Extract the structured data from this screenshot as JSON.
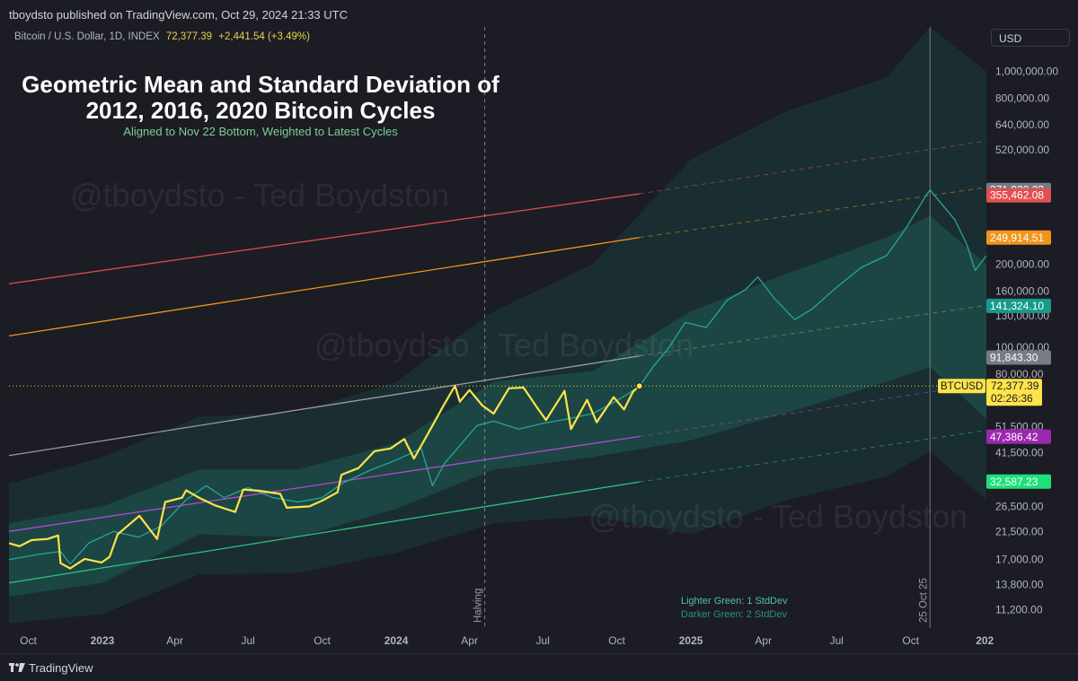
{
  "header": {
    "published": "tboydsto published on TradingView.com, Oct 29, 2024 21:33 UTC"
  },
  "symbol": {
    "name": "Bitcoin / U.S. Dollar, 1D, INDEX",
    "price": "72,377.39",
    "change": "+2,441.54 (+3.49%)"
  },
  "currency_button": "USD",
  "footer": {
    "brand": "TradingView"
  },
  "colors": {
    "background": "#1b1c24",
    "price_line": "#ffe34a",
    "model_line": "#26a69a",
    "band1": "#1d4a47",
    "band2": "#1a2f33",
    "red": "#e0504f",
    "orange": "#f0951c",
    "gray": "#9a9ca3",
    "purple": "#b04ad0",
    "green": "#2ec27e"
  },
  "chart_data": {
    "type": "line",
    "title": "Geometric Mean and Standard Deviation of 2012, 2016, 2020 Bitcoin Cycles",
    "subtitle": "Aligned to Nov 22 Bottom, Weighted to Latest Cycles",
    "y_scale": "log",
    "ylim": [
      9600,
      1450000
    ],
    "xlim": [
      "2022-09-07",
      "2026-01-03"
    ],
    "x_ticks": [
      {
        "date": "2022-10-01",
        "label": "Oct"
      },
      {
        "date": "2023-01-01",
        "label": "2023"
      },
      {
        "date": "2023-04-01",
        "label": "Apr"
      },
      {
        "date": "2023-07-01",
        "label": "Jul"
      },
      {
        "date": "2023-10-01",
        "label": "Oct"
      },
      {
        "date": "2024-01-01",
        "label": "2024"
      },
      {
        "date": "2024-04-01",
        "label": "Apr"
      },
      {
        "date": "2024-07-01",
        "label": "Jul"
      },
      {
        "date": "2024-10-01",
        "label": "Oct"
      },
      {
        "date": "2025-01-01",
        "label": "2025"
      },
      {
        "date": "2025-04-01",
        "label": "Apr"
      },
      {
        "date": "2025-07-01",
        "label": "Jul"
      },
      {
        "date": "2025-10-01",
        "label": "Oct"
      },
      {
        "date": "2026-01-01",
        "label": "202"
      }
    ],
    "y_ticks": [
      {
        "value": 1000000,
        "label": "1,000,000.00"
      },
      {
        "value": 800000,
        "label": "800,000.00"
      },
      {
        "value": 640000,
        "label": "640,000.00"
      },
      {
        "value": 520000,
        "label": "520,000.00"
      },
      {
        "value": 200000,
        "label": "200,000.00"
      },
      {
        "value": 160000,
        "label": "160,000.00"
      },
      {
        "value": 130000,
        "label": "130,000.00"
      },
      {
        "value": 100000,
        "label": "100,000.00"
      },
      {
        "value": 80000,
        "label": "80,000.00"
      },
      {
        "value": 51500,
        "label": "51,500.00"
      },
      {
        "value": 41500,
        "label": "41,500.00"
      },
      {
        "value": 26500,
        "label": "26,500.00"
      },
      {
        "value": 21500,
        "label": "21,500.00"
      },
      {
        "value": 17000,
        "label": "17,000.00"
      },
      {
        "value": 13800,
        "label": "13,800.00"
      },
      {
        "value": 11200,
        "label": "11,200.00"
      }
    ],
    "price_labels": [
      {
        "value": 371920.23,
        "label": "371,920.23",
        "color": "#787b86"
      },
      {
        "value": 355462.08,
        "label": "355,462.08",
        "color": "#e0504f"
      },
      {
        "value": 249914.51,
        "label": "249,914.51",
        "color": "#f0951c"
      },
      {
        "value": 141324.1,
        "label": "141,324.10",
        "color": "#169a8c"
      },
      {
        "value": 91843.3,
        "label": "91,843.30",
        "color": "#787b86"
      },
      {
        "value": 47386.42,
        "label": "47,386.42",
        "color": "#9c27b0"
      },
      {
        "value": 32587.23,
        "label": "32,587.23",
        "color": "#1ee07a"
      }
    ],
    "btc_label": {
      "symbol": "BTCUSD",
      "price": "72,377.39",
      "countdown": "02:26:36",
      "value": 72377.39
    },
    "channel_lines": [
      {
        "color": "#e0504f",
        "start": [
          "2022-09-07",
          170000
        ],
        "end_solid": [
          "2024-10-29",
          360000
        ],
        "end": [
          "2026-01-03",
          560000
        ]
      },
      {
        "color": "#f0951c",
        "start": [
          "2022-09-07",
          110000
        ],
        "end_solid": [
          "2024-10-29",
          250000
        ],
        "end": [
          "2026-01-03",
          380000
        ]
      },
      {
        "color": "#9a9ca3",
        "start": [
          "2022-09-07",
          40500
        ],
        "end_solid": [
          "2024-10-29",
          93000
        ],
        "end": [
          "2026-01-03",
          142000
        ]
      },
      {
        "color": "#b04ad0",
        "start": [
          "2022-09-07",
          21500
        ],
        "end_solid": [
          "2024-10-29",
          47500
        ],
        "end": [
          "2026-01-03",
          74000
        ]
      },
      {
        "color": "#2ec27e",
        "start": [
          "2022-09-07",
          14000
        ],
        "end_solid": [
          "2024-10-29",
          32500
        ],
        "end": [
          "2026-01-03",
          50000
        ]
      }
    ],
    "vertical_markers": [
      {
        "date": "2024-04-20",
        "label": "Halving",
        "style": "dashed"
      },
      {
        "date": "2025-10-25",
        "label": "25 Oct 25",
        "style": "solid"
      }
    ],
    "series": [
      {
        "name": "BTCUSD",
        "color": "#ffe34a",
        "points": [
          [
            "2022-09-07",
            19500
          ],
          [
            "2022-09-20",
            19000
          ],
          [
            "2022-10-05",
            20000
          ],
          [
            "2022-10-25",
            20200
          ],
          [
            "2022-11-07",
            20800
          ],
          [
            "2022-11-10",
            16500
          ],
          [
            "2022-11-22",
            15800
          ],
          [
            "2022-12-10",
            17100
          ],
          [
            "2022-12-31",
            16600
          ],
          [
            "2023-01-10",
            17400
          ],
          [
            "2023-01-20",
            21000
          ],
          [
            "2023-02-05",
            23000
          ],
          [
            "2023-02-16",
            24500
          ],
          [
            "2023-03-10",
            20200
          ],
          [
            "2023-03-20",
            27500
          ],
          [
            "2023-04-10",
            28500
          ],
          [
            "2023-04-15",
            30300
          ],
          [
            "2023-05-01",
            28500
          ],
          [
            "2023-05-20",
            26800
          ],
          [
            "2023-06-15",
            25300
          ],
          [
            "2023-06-25",
            30500
          ],
          [
            "2023-07-15",
            30200
          ],
          [
            "2023-08-10",
            29400
          ],
          [
            "2023-08-18",
            26200
          ],
          [
            "2023-09-15",
            26500
          ],
          [
            "2023-10-01",
            27800
          ],
          [
            "2023-10-20",
            29800
          ],
          [
            "2023-10-25",
            34500
          ],
          [
            "2023-11-15",
            36500
          ],
          [
            "2023-12-05",
            42000
          ],
          [
            "2023-12-25",
            43000
          ],
          [
            "2024-01-11",
            46500
          ],
          [
            "2024-01-23",
            39500
          ],
          [
            "2024-02-15",
            52000
          ],
          [
            "2024-02-28",
            61000
          ],
          [
            "2024-03-14",
            72500
          ],
          [
            "2024-03-20",
            63500
          ],
          [
            "2024-04-01",
            70000
          ],
          [
            "2024-04-17",
            61500
          ],
          [
            "2024-05-01",
            57500
          ],
          [
            "2024-05-20",
            71000
          ],
          [
            "2024-06-07",
            71500
          ],
          [
            "2024-06-24",
            60500
          ],
          [
            "2024-07-05",
            54500
          ],
          [
            "2024-07-28",
            69500
          ],
          [
            "2024-08-05",
            50500
          ],
          [
            "2024-08-25",
            64500
          ],
          [
            "2024-09-06",
            53500
          ],
          [
            "2024-09-27",
            66000
          ],
          [
            "2024-10-10",
            59500
          ],
          [
            "2024-10-21",
            69000
          ],
          [
            "2024-10-29",
            72377
          ]
        ]
      },
      {
        "name": "Model",
        "color": "#26a69a",
        "points": [
          [
            "2022-09-07",
            17000
          ],
          [
            "2022-10-15",
            17800
          ],
          [
            "2022-11-10",
            18200
          ],
          [
            "2022-11-22",
            16400
          ],
          [
            "2022-12-15",
            19500
          ],
          [
            "2023-01-15",
            21500
          ],
          [
            "2023-02-15",
            20500
          ],
          [
            "2023-03-15",
            22500
          ],
          [
            "2023-04-15",
            28000
          ],
          [
            "2023-05-10",
            31500
          ],
          [
            "2023-06-01",
            28500
          ],
          [
            "2023-07-01",
            31000
          ],
          [
            "2023-08-01",
            28500
          ],
          [
            "2023-09-01",
            27500
          ],
          [
            "2023-10-01",
            28500
          ],
          [
            "2023-10-25",
            32000
          ],
          [
            "2023-12-01",
            36000
          ],
          [
            "2024-01-01",
            39000
          ],
          [
            "2024-02-01",
            43000
          ],
          [
            "2024-02-15",
            31500
          ],
          [
            "2024-03-01",
            38000
          ],
          [
            "2024-03-20",
            44000
          ],
          [
            "2024-04-10",
            52000
          ],
          [
            "2024-05-01",
            54000
          ],
          [
            "2024-06-01",
            50500
          ],
          [
            "2024-07-01",
            53000
          ],
          [
            "2024-08-01",
            55000
          ],
          [
            "2024-09-01",
            57500
          ],
          [
            "2024-10-01",
            64000
          ],
          [
            "2024-10-29",
            72000
          ],
          [
            "2024-11-15",
            85000
          ],
          [
            "2024-12-05",
            100000
          ],
          [
            "2024-12-25",
            123000
          ],
          [
            "2025-01-20",
            118000
          ],
          [
            "2025-02-15",
            148000
          ],
          [
            "2025-03-10",
            162000
          ],
          [
            "2025-03-25",
            180000
          ],
          [
            "2025-04-15",
            150000
          ],
          [
            "2025-05-10",
            126000
          ],
          [
            "2025-06-01",
            138000
          ],
          [
            "2025-07-01",
            165000
          ],
          [
            "2025-08-01",
            195000
          ],
          [
            "2025-09-01",
            215000
          ],
          [
            "2025-09-25",
            270000
          ],
          [
            "2025-10-20",
            355000
          ],
          [
            "2025-10-25",
            372000
          ],
          [
            "2025-11-05",
            340000
          ],
          [
            "2025-11-25",
            290000
          ],
          [
            "2025-12-10",
            235000
          ],
          [
            "2025-12-20",
            190000
          ],
          [
            "2026-01-03",
            215000
          ]
        ]
      }
    ],
    "bands": {
      "dates": [
        "2022-09-07",
        "2023-01-01",
        "2023-05-01",
        "2023-09-01",
        "2024-01-01",
        "2024-05-01",
        "2024-09-01",
        "2025-01-01",
        "2025-05-01",
        "2025-09-01",
        "2025-10-25",
        "2026-01-03"
      ],
      "sd1_low": [
        12500,
        14000,
        21000,
        20500,
        26000,
        36000,
        40000,
        46000,
        58000,
        75000,
        85000,
        55000
      ],
      "sd1_high": [
        23000,
        26500,
        36000,
        36000,
        45000,
        75000,
        82000,
        135000,
        185000,
        250000,
        300000,
        200000
      ],
      "sd2_low": [
        10000,
        10800,
        15000,
        15200,
        18000,
        23000,
        24500,
        21000,
        28000,
        34000,
        42000,
        28000
      ],
      "sd2_high": [
        32000,
        40000,
        56000,
        58000,
        75000,
        135000,
        200000,
        480000,
        720000,
        950000,
        1450000,
        1000000
      ]
    },
    "legend": [
      "Lighter Green: 1 StdDev",
      "Darker Green: 2 StdDev"
    ],
    "watermark": "@tboydsto - Ted Boydston"
  }
}
